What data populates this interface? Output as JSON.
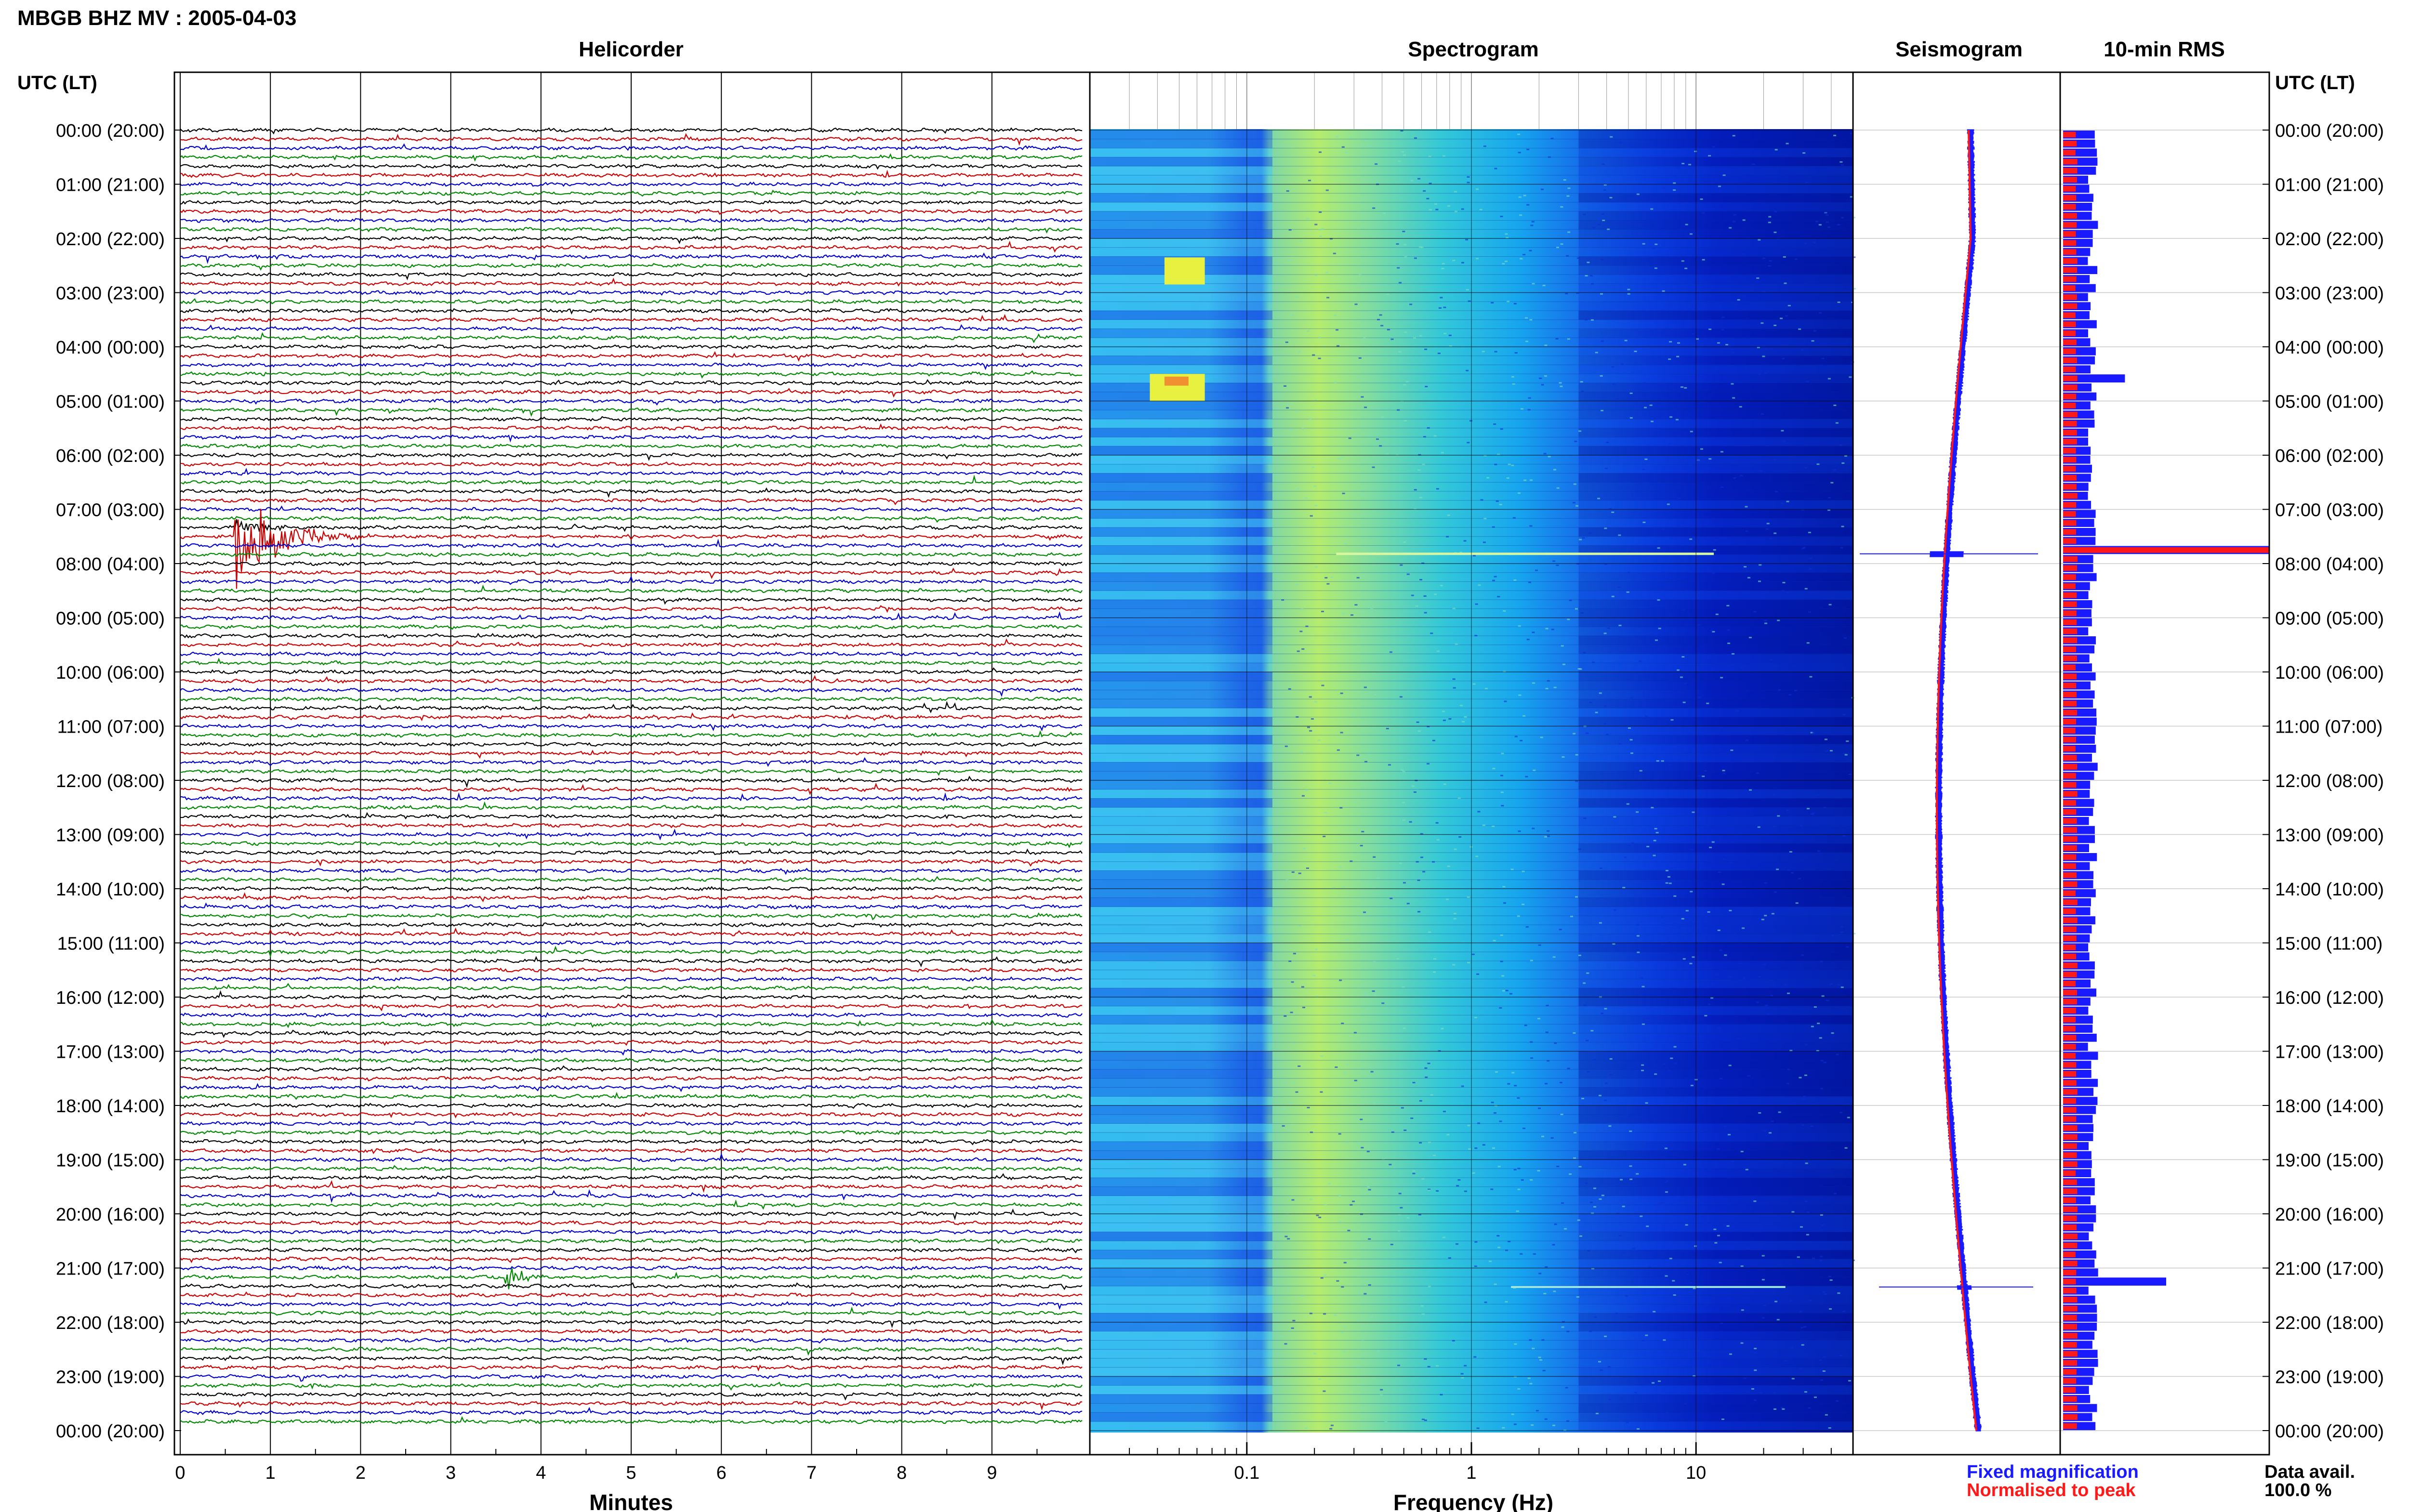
{
  "title": "MBGB BHZ MV : 2005-04-03",
  "panels": {
    "helicorder": "Helicorder",
    "spectrogram": "Spectrogram",
    "seismogram": "Seismogram",
    "rms": "10-min RMS"
  },
  "left_axis_title": "UTC (LT)",
  "right_axis_title": "UTC (LT)",
  "x_labels": {
    "helicorder": "Minutes",
    "spectrogram": "Frequency (Hz)"
  },
  "legend": {
    "fixed": "Fixed magnification",
    "normalised": "Normalised to peak"
  },
  "data_avail": {
    "label": "Data avail.",
    "value": "100.0 %"
  },
  "colors": {
    "fixed": "#1a1aff",
    "normalised": "#ff1a1a",
    "trace_cycle": [
      "#000000",
      "#cc0000",
      "#0000cc",
      "#008800"
    ]
  },
  "chart_data": [
    {
      "type": "line",
      "name": "helicorder",
      "x_ticks": [
        "0",
        "1",
        "2",
        "3",
        "4",
        "5",
        "6",
        "7",
        "8",
        "9"
      ],
      "y_ticks": [
        "00:00 (20:00)",
        "01:00 (21:00)",
        "02:00 (22:00)",
        "03:00 (23:00)",
        "04:00 (00:00)",
        "05:00 (01:00)",
        "06:00 (02:00)",
        "07:00 (03:00)",
        "08:00 (04:00)",
        "09:00 (05:00)",
        "10:00 (06:00)",
        "11:00 (07:00)",
        "12:00 (08:00)",
        "13:00 (09:00)",
        "14:00 (10:00)",
        "15:00 (11:00)",
        "16:00 (12:00)",
        "17:00 (13:00)",
        "18:00 (14:00)",
        "19:00 (15:00)",
        "20:00 (16:00)",
        "21:00 (17:00)",
        "22:00 (18:00)",
        "23:00 (19:00)",
        "00:00 (20:00)"
      ],
      "xlim": [
        0,
        10
      ],
      "xlabel": "Minutes",
      "events": [
        {
          "start_hour": 7.5,
          "start_minute": 0.6,
          "note": "large event near 07:50 UTC"
        },
        {
          "start_hour": 21.2,
          "start_minute": 3.6
        }
      ]
    },
    {
      "type": "heatmap",
      "name": "spectrogram",
      "x_scale": "log",
      "xlim": [
        0.02,
        50
      ],
      "x_ticks": [
        "0.1",
        "1",
        "10"
      ],
      "xlabel": "Frequency (Hz)"
    },
    {
      "type": "line",
      "name": "seismogram",
      "series": [
        {
          "name": "Fixed magnification"
        },
        {
          "name": "Normalised to peak"
        }
      ]
    },
    {
      "type": "bar",
      "name": "10-min RMS",
      "series": [
        {
          "name": "Fixed magnification"
        },
        {
          "name": "Normalised to peak"
        }
      ],
      "peaks": [
        {
          "hour": 7.8,
          "level": 1.0
        },
        {
          "hour": 21.3,
          "level": 0.5
        },
        {
          "hour": 4.6,
          "level": 0.3
        }
      ]
    }
  ]
}
